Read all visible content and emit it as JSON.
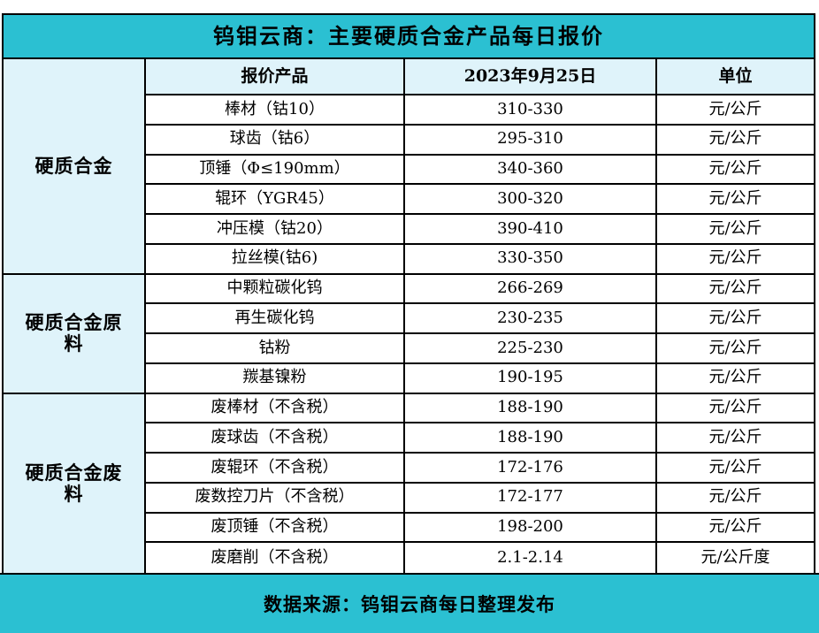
{
  "title": "钨钼云商：主要硬质合金产品每日报价",
  "header": {
    "product": "报价产品",
    "date": "2023年9月25日",
    "unit": "单位"
  },
  "sections": [
    {
      "group": "硬质合金",
      "rows": [
        {
          "product": "棒材（钴10）",
          "price": "310-330",
          "unit": "元/公斤"
        },
        {
          "product": "球齿（钴6）",
          "price": "295-310",
          "unit": "元/公斤"
        },
        {
          "product": "顶锤（Φ≤190mm）",
          "price": "340-360",
          "unit": "元/公斤"
        },
        {
          "product": "辊环（YGR45）",
          "price": "300-320",
          "unit": "元/公斤"
        },
        {
          "product": "冲压模（钴20）",
          "price": "390-410",
          "unit": "元/公斤"
        },
        {
          "product": "拉丝模(钴6)",
          "price": "330-350",
          "unit": "元/公斤"
        }
      ]
    },
    {
      "group": "硬质合金原料",
      "rows": [
        {
          "product": "中颗粒碳化钨",
          "price": "266-269",
          "unit": "元/公斤"
        },
        {
          "product": "再生碳化钨",
          "price": "230-235",
          "unit": "元/公斤"
        },
        {
          "product": "钴粉",
          "price": "225-230",
          "unit": "元/公斤"
        },
        {
          "product": "羰基镍粉",
          "price": "190-195",
          "unit": "元/公斤"
        }
      ]
    },
    {
      "group": "硬质合金废料",
      "rows": [
        {
          "product": "废棒材（不含税）",
          "price": "188-190",
          "unit": "元/公斤"
        },
        {
          "product": "废球齿（不含税）",
          "price": "188-190",
          "unit": "元/公斤"
        },
        {
          "product": "废辊环（不含税）",
          "price": "172-176",
          "unit": "元/公斤"
        },
        {
          "product": "废数控刀片（不含税）",
          "price": "172-177",
          "unit": "元/公斤"
        },
        {
          "product": "废顶锤（不含税）",
          "price": "198-200",
          "unit": "元/公斤"
        },
        {
          "product": "废磨削（不含税）",
          "price": "2.1-2.14",
          "unit": "元/公斤度"
        }
      ]
    }
  ],
  "footer": "数据来源：钨钼云商每日整理发布",
  "colors": {
    "accent_teal": "#2bc0d2",
    "light_cyan": "#dff3fa",
    "border": "#000000",
    "text": "#000000",
    "page_bg": "#ffffff"
  }
}
